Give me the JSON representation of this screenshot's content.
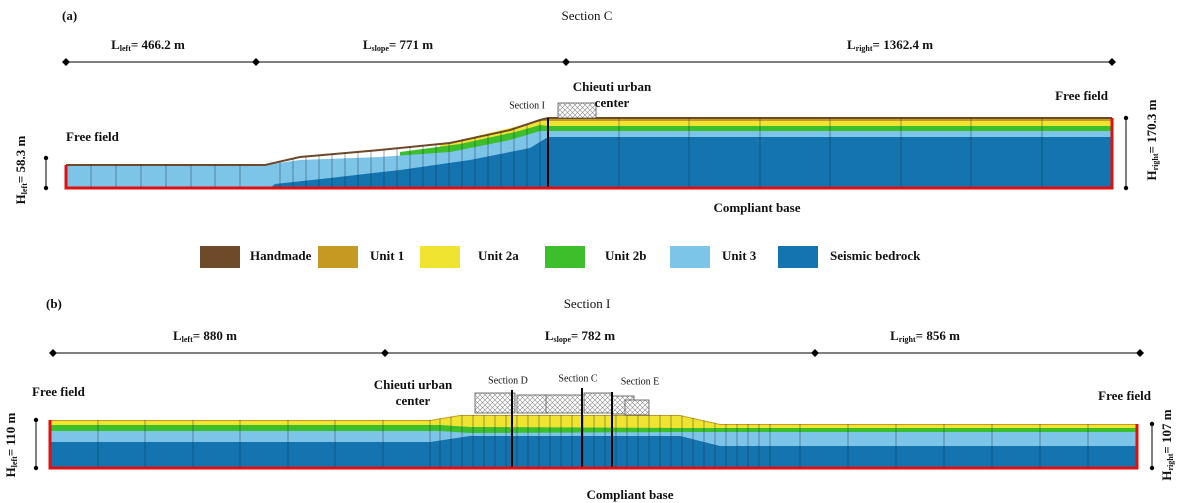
{
  "panel_a": {
    "label": "(a)",
    "title": "Section C",
    "dimensions": [
      {
        "symbol": "L",
        "sub": "left",
        "value": "= 466.2 m"
      },
      {
        "symbol": "L",
        "sub": "slope",
        "value": "= 771 m"
      },
      {
        "symbol": "L",
        "sub": "right",
        "value": "= 1362.4 m"
      }
    ],
    "heights": [
      {
        "symbol": "H",
        "sub": "left",
        "value": "= 58.3 m"
      },
      {
        "symbol": "H",
        "sub": "right",
        "value": "= 170.3 m"
      }
    ],
    "free_field_left": "Free field",
    "free_field_right": "Free field",
    "urban_center": [
      "Chieuti urban",
      "center"
    ],
    "sections": [
      "Section I"
    ],
    "base": "Compliant base"
  },
  "legend": [
    {
      "label": "Handmade",
      "color": "#6e4a2a"
    },
    {
      "label": "Unit 1",
      "color": "#c49a22"
    },
    {
      "label": "Unit 2a",
      "color": "#f0e430"
    },
    {
      "label": "Unit 2b",
      "color": "#3cbf2a"
    },
    {
      "label": "Unit 3",
      "color": "#7cc4e8"
    },
    {
      "label": "Seismic bedrock",
      "color": "#1474b0"
    }
  ],
  "panel_b": {
    "label": "(b)",
    "title": "Section I",
    "dimensions": [
      {
        "symbol": "L",
        "sub": "left",
        "value": "= 880 m"
      },
      {
        "symbol": "L",
        "sub": "slope",
        "value": "= 782 m"
      },
      {
        "symbol": "L",
        "sub": "right",
        "value": "= 856 m"
      }
    ],
    "heights": [
      {
        "symbol": "H",
        "sub": "left",
        "value": "= 110 m"
      },
      {
        "symbol": "H",
        "sub": "right",
        "value": "= 107 m"
      }
    ],
    "free_field_left": "Free field",
    "free_field_right": "Free field",
    "urban_center": [
      "Chieuti urban",
      "center"
    ],
    "sections": [
      "Section D",
      "Section C",
      "Section E"
    ],
    "base": "Compliant base"
  }
}
